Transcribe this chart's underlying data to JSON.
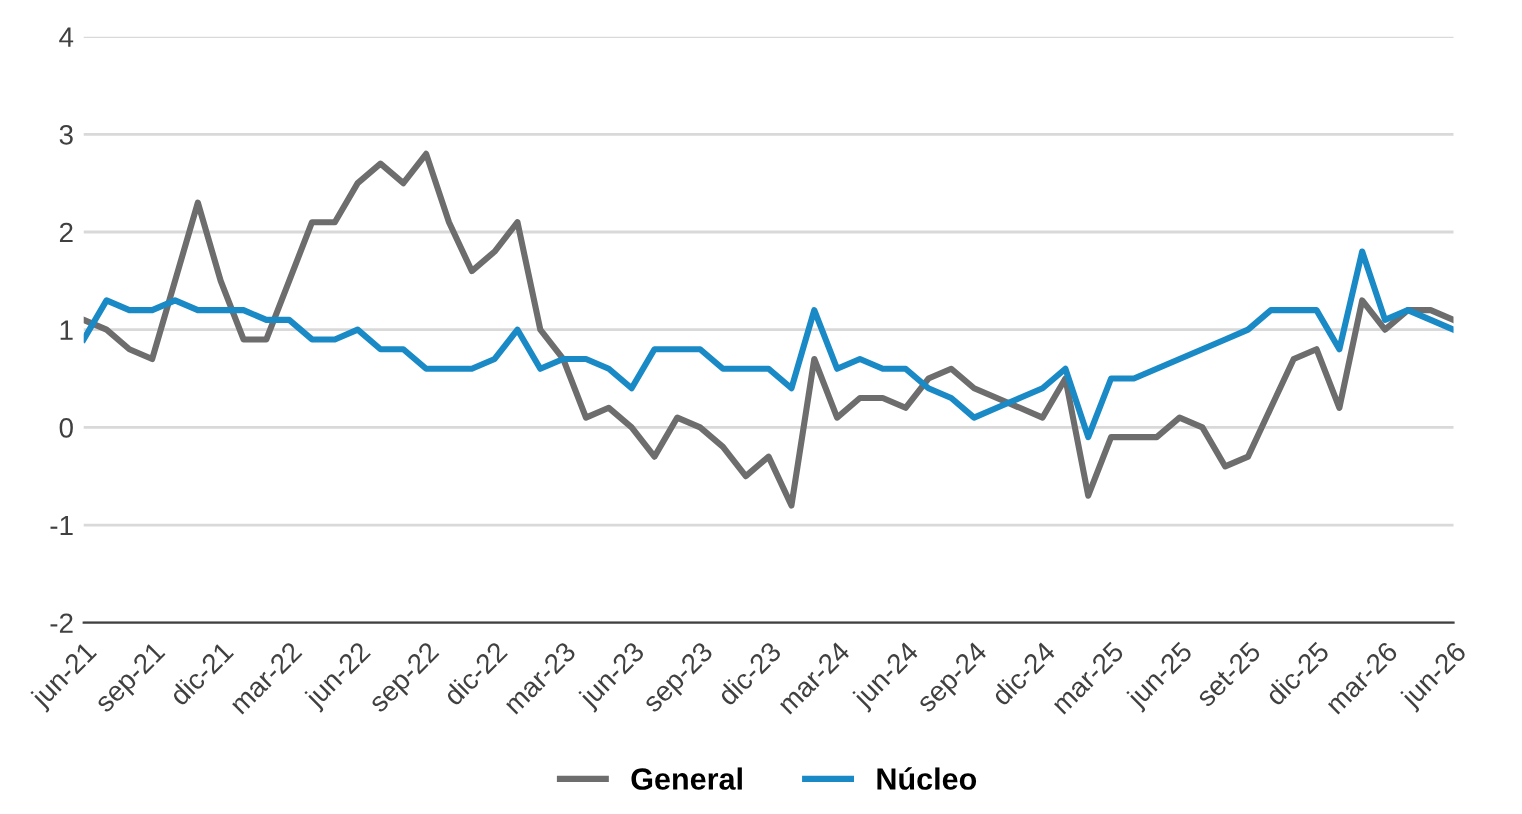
{
  "chart_data": {
    "type": "line",
    "categories": [
      "jun-21",
      null,
      null,
      "sep-21",
      null,
      null,
      "dic-21",
      null,
      null,
      "mar-22",
      null,
      null,
      "jun-22",
      null,
      null,
      "sep-22",
      null,
      null,
      "dic-22",
      null,
      null,
      "mar-23",
      null,
      null,
      "jun-23",
      null,
      null,
      "sep-23",
      null,
      null,
      "dic-23",
      null,
      null,
      "mar-24",
      null,
      null,
      "jun-24",
      null,
      null,
      "sep-24",
      null,
      null,
      "dic-24",
      null,
      null,
      "mar-25",
      null,
      null,
      "jun-25",
      null,
      null,
      "set-25",
      null,
      null,
      "dic-25",
      null,
      null,
      "mar-26",
      null,
      null,
      "jun-26"
    ],
    "series": [
      {
        "name": "General",
        "color": "#6d6d6d",
        "values": [
          1.1,
          1.0,
          0.8,
          0.7,
          1.5,
          2.3,
          1.5,
          0.9,
          0.9,
          1.5,
          2.1,
          2.1,
          2.5,
          2.7,
          2.5,
          2.8,
          2.1,
          1.6,
          1.8,
          2.1,
          1.0,
          0.7,
          0.1,
          0.2,
          0.0,
          -0.3,
          0.1,
          0.0,
          -0.2,
          -0.5,
          -0.3,
          -0.8,
          0.7,
          0.1,
          0.3,
          0.3,
          0.2,
          0.5,
          0.6,
          0.4,
          0.3,
          0.2,
          0.1,
          0.5,
          -0.7,
          -0.1,
          -0.1,
          -0.1,
          0.1,
          0.0,
          -0.4,
          -0.3,
          0.2,
          0.7,
          0.8,
          0.2,
          1.3,
          1.0,
          1.2,
          1.2,
          1.1
        ]
      },
      {
        "name": "Núcleo",
        "color": "#1a8ac6",
        "values": [
          0.9,
          1.3,
          1.2,
          1.2,
          1.3,
          1.2,
          1.2,
          1.2,
          1.1,
          1.1,
          0.9,
          0.9,
          1.0,
          0.8,
          0.8,
          0.6,
          0.6,
          0.6,
          0.7,
          1.0,
          0.6,
          0.7,
          0.7,
          0.6,
          0.4,
          0.8,
          0.8,
          0.8,
          0.6,
          0.6,
          0.6,
          0.4,
          1.2,
          0.6,
          0.7,
          0.6,
          0.6,
          0.4,
          0.3,
          0.1,
          0.2,
          0.3,
          0.4,
          0.6,
          -0.1,
          0.5,
          0.5,
          0.6,
          0.7,
          0.8,
          0.9,
          1.0,
          1.2,
          1.2,
          1.2,
          0.8,
          1.8,
          1.1,
          1.2,
          1.1,
          1.0
        ]
      }
    ],
    "ylim": [
      -2,
      4
    ],
    "yticks": [
      -2,
      -1,
      0,
      1,
      2,
      3,
      4
    ],
    "grid": "y",
    "legend": "bottom",
    "marker": "none",
    "line_style": "solid"
  }
}
